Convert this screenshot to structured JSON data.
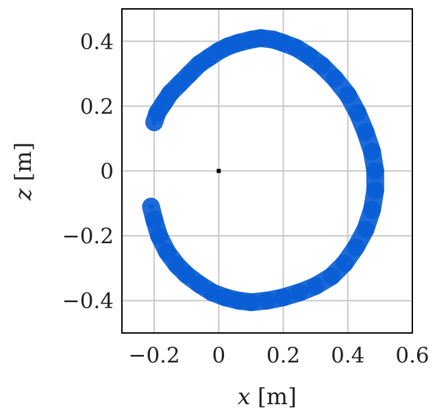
{
  "chart_data": {
    "type": "scatter",
    "title": "",
    "xlabel_var": "x",
    "xlabel_unit": "[m]",
    "ylabel_var": "z",
    "ylabel_unit": "[m]",
    "xlim": [
      -0.3,
      0.6
    ],
    "ylim": [
      -0.5,
      0.5
    ],
    "grid": true,
    "legend": "none",
    "x_ticks": [
      -0.2,
      0,
      0.2,
      0.4,
      0.6
    ],
    "x_tick_labels": [
      "−0.2",
      "0",
      "0.2",
      "0.4",
      "0.6"
    ],
    "y_ticks": [
      -0.4,
      -0.2,
      0,
      0.2,
      0.4
    ],
    "y_tick_labels": [
      "−0.4",
      "−0.2",
      "0",
      "0.2",
      "0.4"
    ],
    "point_color": "#0a5fd6",
    "center_marker": {
      "x": 0,
      "y": 0,
      "color": "#000000"
    },
    "series": [
      {
        "name": "",
        "points": [
          [
            -0.2,
            0.15
          ],
          [
            -0.19,
            0.18
          ],
          [
            -0.17,
            0.21
          ],
          [
            -0.15,
            0.24
          ],
          [
            -0.12,
            0.27
          ],
          [
            -0.09,
            0.3
          ],
          [
            -0.06,
            0.33
          ],
          [
            -0.03,
            0.35
          ],
          [
            0.0,
            0.37
          ],
          [
            0.03,
            0.385
          ],
          [
            0.06,
            0.395
          ],
          [
            0.1,
            0.405
          ],
          [
            0.13,
            0.41
          ],
          [
            0.17,
            0.405
          ],
          [
            0.2,
            0.395
          ],
          [
            0.24,
            0.38
          ],
          [
            0.28,
            0.355
          ],
          [
            0.32,
            0.325
          ],
          [
            0.36,
            0.285
          ],
          [
            0.4,
            0.235
          ],
          [
            0.43,
            0.18
          ],
          [
            0.455,
            0.12
          ],
          [
            0.475,
            0.06
          ],
          [
            0.485,
            0.0
          ],
          [
            0.485,
            -0.06
          ],
          [
            0.475,
            -0.12
          ],
          [
            0.455,
            -0.18
          ],
          [
            0.425,
            -0.235
          ],
          [
            0.39,
            -0.285
          ],
          [
            0.35,
            -0.325
          ],
          [
            0.3,
            -0.355
          ],
          [
            0.25,
            -0.375
          ],
          [
            0.2,
            -0.39
          ],
          [
            0.15,
            -0.4
          ],
          [
            0.1,
            -0.405
          ],
          [
            0.06,
            -0.4
          ],
          [
            0.02,
            -0.39
          ],
          [
            -0.02,
            -0.375
          ],
          [
            -0.06,
            -0.35
          ],
          [
            -0.1,
            -0.32
          ],
          [
            -0.13,
            -0.29
          ],
          [
            -0.16,
            -0.25
          ],
          [
            -0.185,
            -0.2
          ],
          [
            -0.2,
            -0.15
          ],
          [
            -0.21,
            -0.11
          ]
        ]
      }
    ]
  }
}
